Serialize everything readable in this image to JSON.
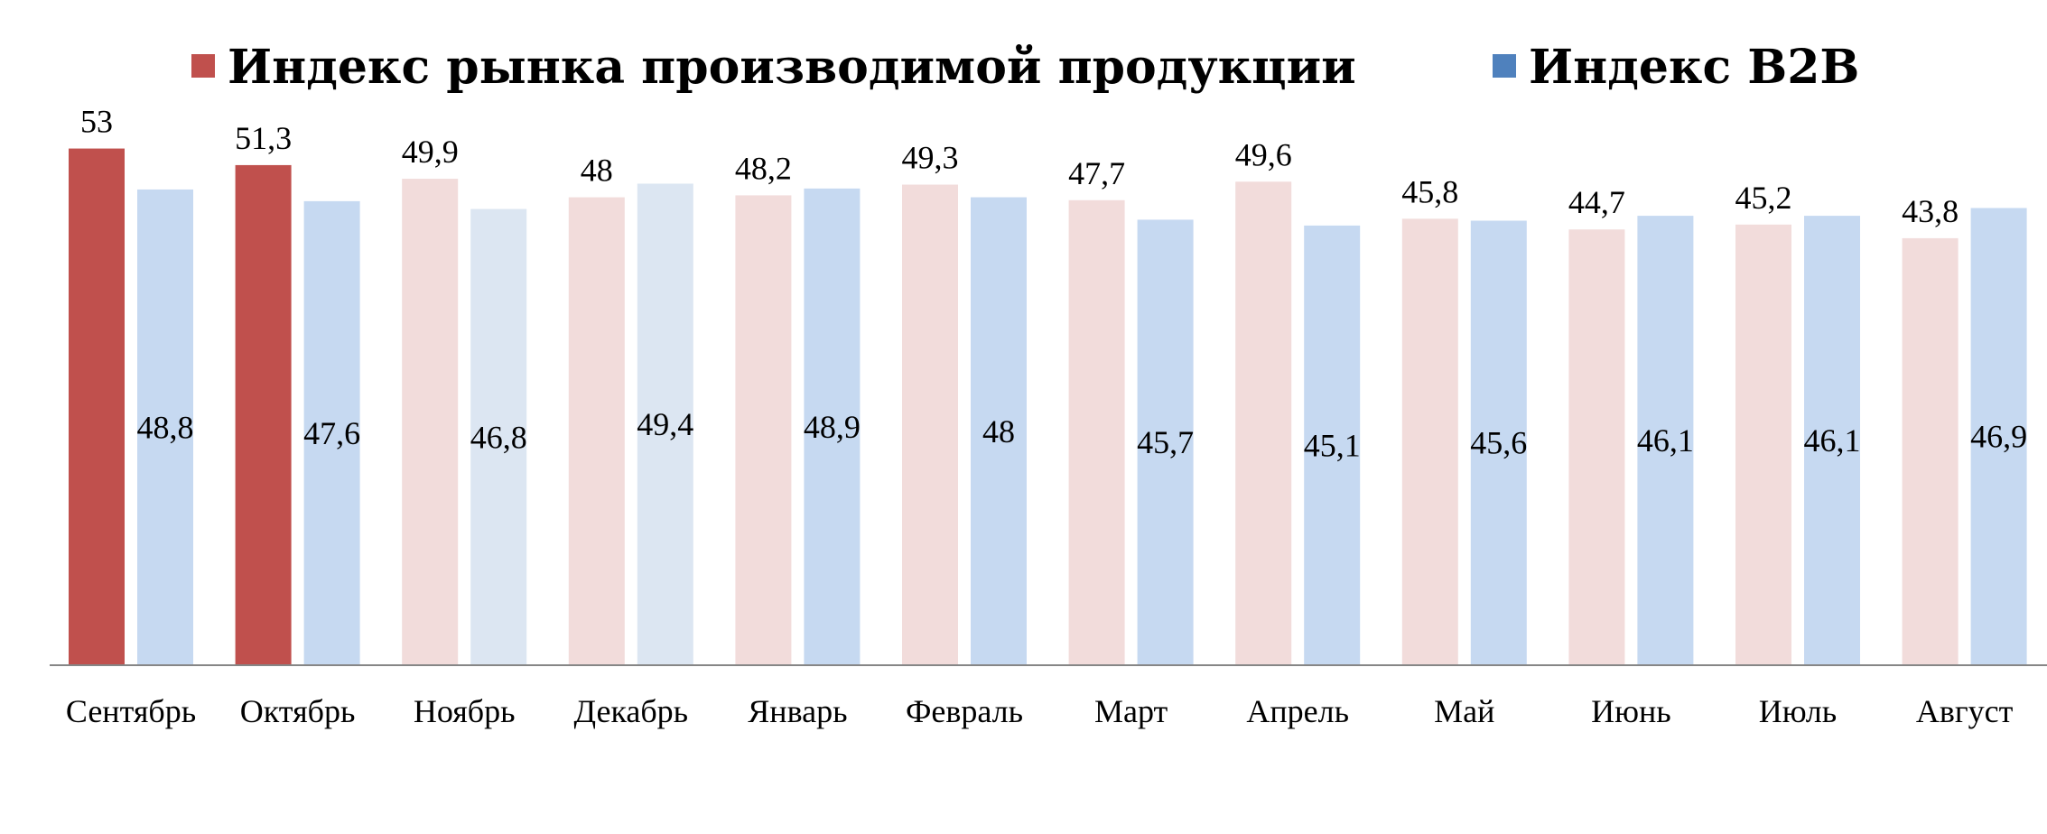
{
  "chart_data": {
    "type": "bar",
    "title": "",
    "xlabel": "",
    "ylabel": "",
    "ylim": [
      0,
      56.2
    ],
    "grid": false,
    "legend_position": "top",
    "categories": [
      "Сентябрь",
      "Октябрь",
      "Ноябрь",
      "Декабрь",
      "Январь",
      "Февраль",
      "Март",
      "Апрель",
      "Май",
      "Июнь",
      "Июль",
      "Август"
    ],
    "series": [
      {
        "name": "Индекс рынка производимой продукции",
        "legend_color": "#C0504D",
        "values": [
          53,
          51.3,
          49.9,
          48,
          48.2,
          49.3,
          47.7,
          49.6,
          45.8,
          44.7,
          45.2,
          43.8
        ],
        "labels": [
          "53",
          "51,3",
          "49,9",
          "48",
          "48,2",
          "49,3",
          "47,7",
          "49,6",
          "45,8",
          "44,7",
          "45,2",
          "43,8"
        ],
        "colors": [
          "#C0504D",
          "#C0504D",
          "#F2DCDB",
          "#F2DCDB",
          "#F2DCDB",
          "#F2DCDB",
          "#F2DCDB",
          "#F2DCDB",
          "#F2DCDB",
          "#F2DCDB",
          "#F2DCDB",
          "#F2DCDB"
        ]
      },
      {
        "name": "Индекс B2B",
        "legend_color": "#4F81BD",
        "values": [
          48.8,
          47.6,
          46.8,
          49.4,
          48.9,
          48,
          45.7,
          45.1,
          45.6,
          46.1,
          46.1,
          46.9
        ],
        "labels": [
          "48,8",
          "47,6",
          "46,8",
          "49,4",
          "48,9",
          "48",
          "45,7",
          "45,1",
          "45,6",
          "46,1",
          "46,1",
          "46,9"
        ],
        "colors": [
          "#C6D9F1",
          "#C6D9F1",
          "#DCE6F2",
          "#DCE6F2",
          "#C6D9F1",
          "#C6D9F1",
          "#C6D9F1",
          "#C6D9F1",
          "#C6D9F1",
          "#C6D9F1",
          "#C6D9F1",
          "#C6D9F1"
        ]
      }
    ],
    "axis_color": "#868686"
  }
}
